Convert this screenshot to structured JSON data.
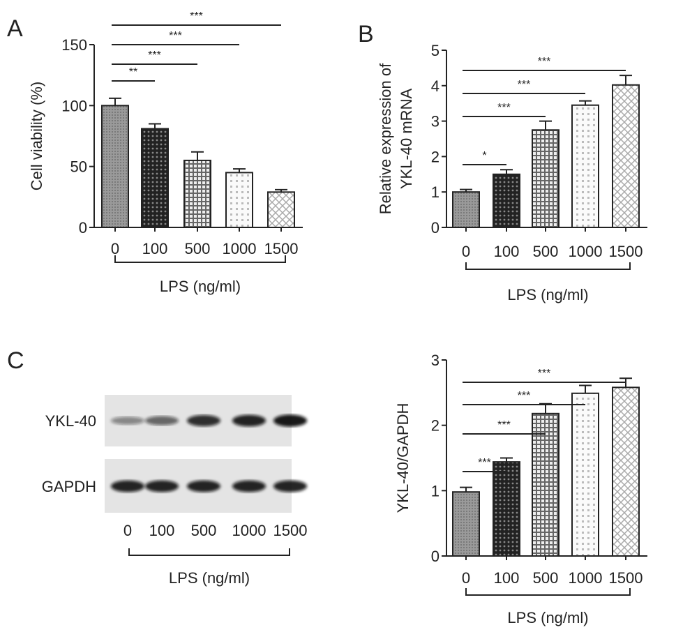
{
  "chart_data": [
    {
      "panel": "A",
      "type": "bar",
      "categories": [
        "0",
        "100",
        "500",
        "1000",
        "1500"
      ],
      "values": [
        100,
        81,
        55,
        45,
        29
      ],
      "errors": [
        6,
        4,
        7,
        3,
        2
      ],
      "ylabel": "Cell viability (%)",
      "xlabel": "LPS (ng/ml)",
      "ylim": [
        0,
        150
      ],
      "yticks": [
        0,
        50,
        100,
        150
      ],
      "significance": [
        {
          "from": "0",
          "to": "100",
          "label": "**"
        },
        {
          "from": "0",
          "to": "500",
          "label": "***"
        },
        {
          "from": "0",
          "to": "1000",
          "label": "***"
        },
        {
          "from": "0",
          "to": "1500",
          "label": "***"
        }
      ]
    },
    {
      "panel": "B",
      "type": "bar",
      "categories": [
        "0",
        "100",
        "500",
        "1000",
        "1500"
      ],
      "values": [
        1.0,
        1.5,
        2.75,
        3.45,
        4.02
      ],
      "errors": [
        0.07,
        0.13,
        0.25,
        0.12,
        0.27
      ],
      "ylabel": [
        "Relative expression of",
        "YKL-40 mRNA"
      ],
      "xlabel": "LPS (ng/ml)",
      "ylim": [
        0,
        5
      ],
      "yticks": [
        0,
        1,
        2,
        3,
        4,
        5
      ],
      "significance": [
        {
          "from": "0",
          "to": "100",
          "label": "*"
        },
        {
          "from": "0",
          "to": "500",
          "label": "***"
        },
        {
          "from": "0",
          "to": "1000",
          "label": "***"
        },
        {
          "from": "0",
          "to": "1500",
          "label": "***"
        }
      ]
    },
    {
      "panel": "C",
      "type": "bar",
      "categories": [
        "0",
        "100",
        "500",
        "1000",
        "1500"
      ],
      "values": [
        0.98,
        1.44,
        2.18,
        2.49,
        2.58
      ],
      "errors": [
        0.07,
        0.06,
        0.15,
        0.12,
        0.14
      ],
      "ylabel": "YKL-40/GAPDH",
      "xlabel": "LPS (ng/ml)",
      "ylim": [
        0,
        3
      ],
      "yticks": [
        0,
        1,
        2,
        3
      ],
      "significance": [
        {
          "from": "0",
          "to": "100",
          "label": "***"
        },
        {
          "from": "0",
          "to": "500",
          "label": "***"
        },
        {
          "from": "0",
          "to": "1000",
          "label": "***"
        },
        {
          "from": "0",
          "to": "1500",
          "label": "***"
        }
      ]
    }
  ],
  "blot": {
    "panel": "C",
    "rows": [
      "YKL-40",
      "GAPDH"
    ],
    "lanes": [
      "0",
      "100",
      "500",
      "1000",
      "1500"
    ],
    "xlabel": "LPS (ng/ml)",
    "band_intensity": {
      "YKL-40": [
        0.45,
        0.6,
        0.85,
        0.9,
        0.95
      ],
      "GAPDH": [
        0.9,
        0.9,
        0.9,
        0.9,
        0.9
      ]
    }
  }
}
